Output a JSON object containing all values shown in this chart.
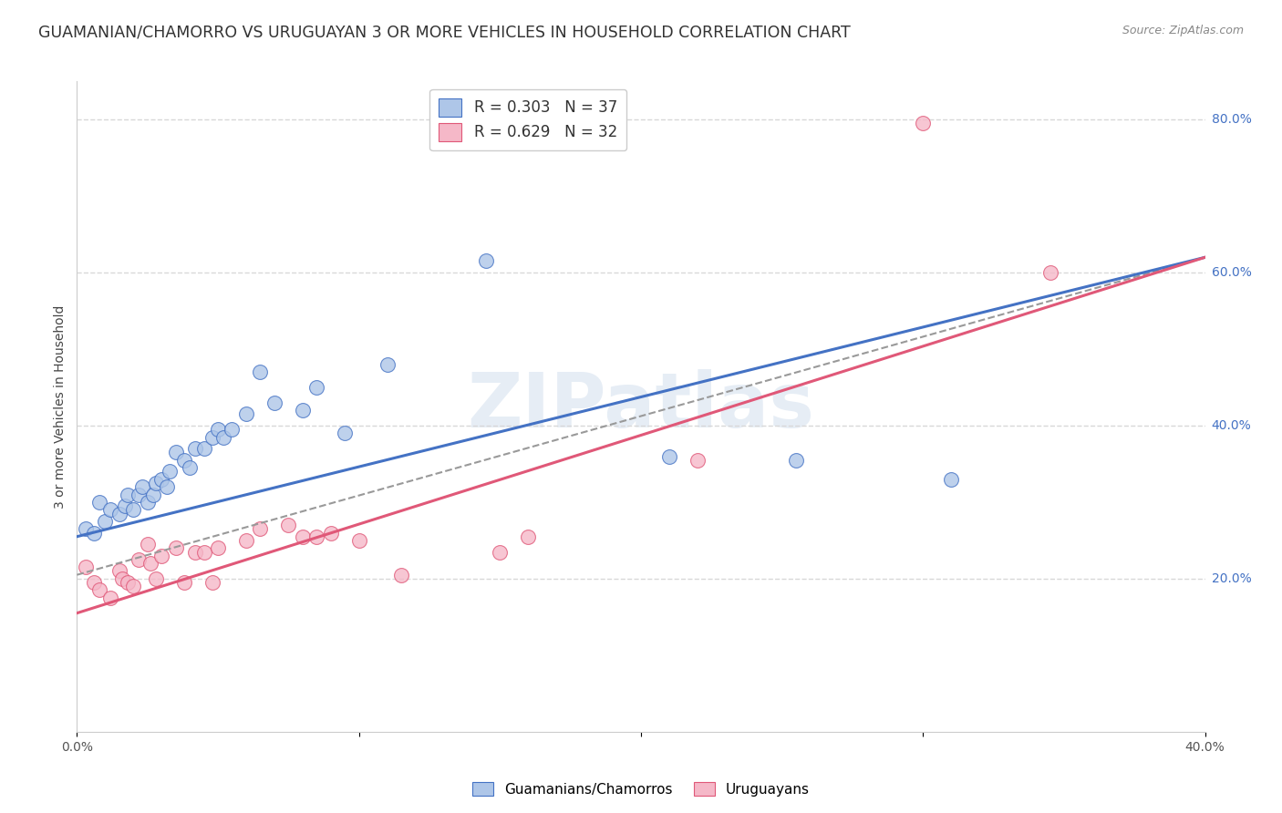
{
  "title": "GUAMANIAN/CHAMORRO VS URUGUAYAN 3 OR MORE VEHICLES IN HOUSEHOLD CORRELATION CHART",
  "source": "Source: ZipAtlas.com",
  "ylabel": "3 or more Vehicles in Household",
  "xlim": [
    0.0,
    0.4
  ],
  "ylim": [
    0.0,
    0.85
  ],
  "xtick_labels": [
    "0.0%",
    "",
    "",
    "",
    "40.0%"
  ],
  "xtick_vals": [
    0.0,
    0.1,
    0.2,
    0.3,
    0.4
  ],
  "ytick_labels_right": [
    "20.0%",
    "40.0%",
    "60.0%",
    "80.0%"
  ],
  "ytick_vals_right": [
    0.2,
    0.4,
    0.6,
    0.8
  ],
  "legend_line1": "R = 0.303   N = 37",
  "legend_line2": "R = 0.629   N = 32",
  "watermark": "ZIPatlas",
  "blue_color": "#aec6e8",
  "pink_color": "#f5b8c8",
  "blue_line_color": "#4472c4",
  "pink_line_color": "#e05878",
  "blue_scatter_x": [
    0.003,
    0.006,
    0.008,
    0.01,
    0.012,
    0.015,
    0.017,
    0.018,
    0.02,
    0.022,
    0.023,
    0.025,
    0.027,
    0.028,
    0.03,
    0.032,
    0.033,
    0.035,
    0.038,
    0.04,
    0.042,
    0.045,
    0.048,
    0.05,
    0.052,
    0.055,
    0.06,
    0.065,
    0.07,
    0.08,
    0.085,
    0.095,
    0.11,
    0.145,
    0.21,
    0.255,
    0.31
  ],
  "blue_scatter_y": [
    0.265,
    0.26,
    0.3,
    0.275,
    0.29,
    0.285,
    0.295,
    0.31,
    0.29,
    0.31,
    0.32,
    0.3,
    0.31,
    0.325,
    0.33,
    0.32,
    0.34,
    0.365,
    0.355,
    0.345,
    0.37,
    0.37,
    0.385,
    0.395,
    0.385,
    0.395,
    0.415,
    0.47,
    0.43,
    0.42,
    0.45,
    0.39,
    0.48,
    0.615,
    0.36,
    0.355,
    0.33
  ],
  "pink_scatter_x": [
    0.003,
    0.006,
    0.008,
    0.012,
    0.015,
    0.016,
    0.018,
    0.02,
    0.022,
    0.025,
    0.026,
    0.028,
    0.03,
    0.035,
    0.038,
    0.042,
    0.045,
    0.048,
    0.05,
    0.06,
    0.065,
    0.075,
    0.08,
    0.085,
    0.09,
    0.1,
    0.115,
    0.15,
    0.16,
    0.22,
    0.3,
    0.345
  ],
  "pink_scatter_y": [
    0.215,
    0.195,
    0.185,
    0.175,
    0.21,
    0.2,
    0.195,
    0.19,
    0.225,
    0.245,
    0.22,
    0.2,
    0.23,
    0.24,
    0.195,
    0.235,
    0.235,
    0.195,
    0.24,
    0.25,
    0.265,
    0.27,
    0.255,
    0.255,
    0.26,
    0.25,
    0.205,
    0.235,
    0.255,
    0.355,
    0.795,
    0.6
  ],
  "blue_line_x0": 0.0,
  "blue_line_y0": 0.255,
  "blue_line_x1": 0.4,
  "blue_line_y1": 0.62,
  "pink_line_x0": 0.0,
  "pink_line_y0": 0.155,
  "pink_line_x1": 0.4,
  "pink_line_y1": 0.62,
  "dash_line_x0": 0.0,
  "dash_line_y0": 0.205,
  "dash_line_x1": 0.4,
  "dash_line_y1": 0.62,
  "background_color": "#ffffff",
  "grid_color": "#d8d8d8",
  "title_fontsize": 12.5,
  "axis_label_fontsize": 10,
  "tick_fontsize": 10
}
